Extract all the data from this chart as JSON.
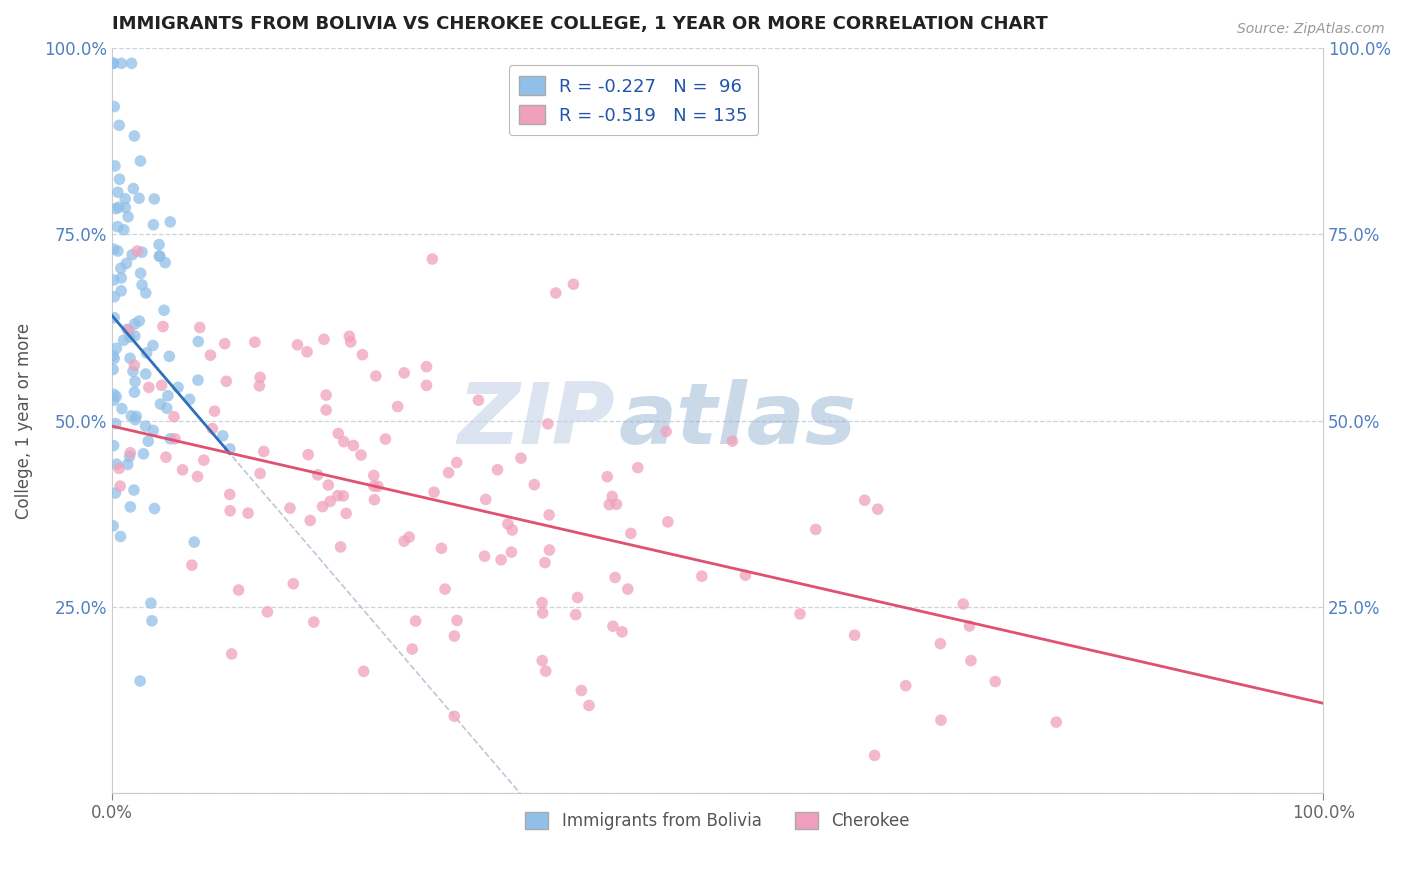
{
  "title": "IMMIGRANTS FROM BOLIVIA VS CHEROKEE COLLEGE, 1 YEAR OR MORE CORRELATION CHART",
  "source_text": "Source: ZipAtlas.com",
  "ylabel": "College, 1 year or more",
  "xlim": [
    0.0,
    1.0
  ],
  "ylim": [
    0.0,
    1.0
  ],
  "watermark_zip": "ZIP",
  "watermark_atlas": "atlas",
  "bolivia_color": "#90c0e8",
  "cherokee_color": "#f0a0bc",
  "bolivia_line_color": "#3070b8",
  "cherokee_line_color": "#e05070",
  "gray_line_color": "#b0b8cc",
  "bolivia_R": -0.227,
  "cherokee_R": -0.519,
  "bolivia_N": 96,
  "cherokee_N": 135,
  "background_color": "#ffffff",
  "grid_color": "#c8d0dc",
  "tick_color": "#5080c0",
  "title_color": "#222222",
  "source_color": "#999999",
  "ylabel_color": "#555555",
  "legend_label_color": "#2255aa"
}
